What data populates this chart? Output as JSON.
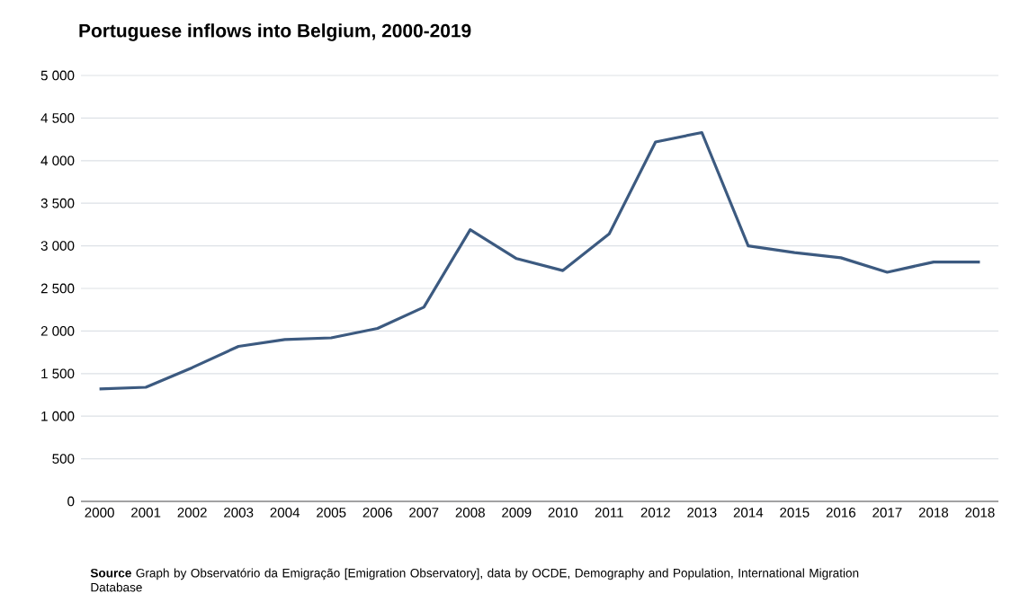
{
  "chart_data": {
    "type": "line",
    "title": "Portuguese inflows into Belgium, 2000-2019",
    "categories": [
      "2000",
      "2001",
      "2002",
      "2003",
      "2004",
      "2005",
      "2006",
      "2007",
      "2008",
      "2009",
      "2010",
      "2011",
      "2012",
      "2013",
      "2014",
      "2015",
      "2016",
      "2017",
      "2018",
      "2018"
    ],
    "series": [
      {
        "color": "#3c5a80",
        "values": [
          1320,
          1340,
          1570,
          1820,
          1900,
          1920,
          2030,
          2280,
          3190,
          2850,
          2710,
          3140,
          4220,
          4330,
          3000,
          2920,
          2860,
          2690,
          2810,
          2810
        ]
      }
    ],
    "ylim": [
      0,
      5000
    ],
    "yticks": [
      0,
      500,
      {
        "value": 1000,
        "label": "1 000"
      },
      {
        "value": 1500,
        "label": "1 500"
      },
      {
        "value": 2000,
        "label": "2 000"
      },
      {
        "value": 2500,
        "label": "2 500"
      },
      {
        "value": 3000,
        "label": "3 000"
      },
      {
        "value": 3500,
        "label": "3 500"
      },
      {
        "value": 4000,
        "label": "4 000"
      },
      {
        "value": 4500,
        "label": "4 500"
      },
      {
        "value": 5000,
        "label": "5 000"
      }
    ],
    "grid": "y",
    "legend": false,
    "marker": "none",
    "line_style": "solid",
    "annotations": [
      "**Source**  Graph by Observatório da Emigração [Emigration Observatory], data by OCDE, Demography and Population, International Migration Database"
    ]
  }
}
